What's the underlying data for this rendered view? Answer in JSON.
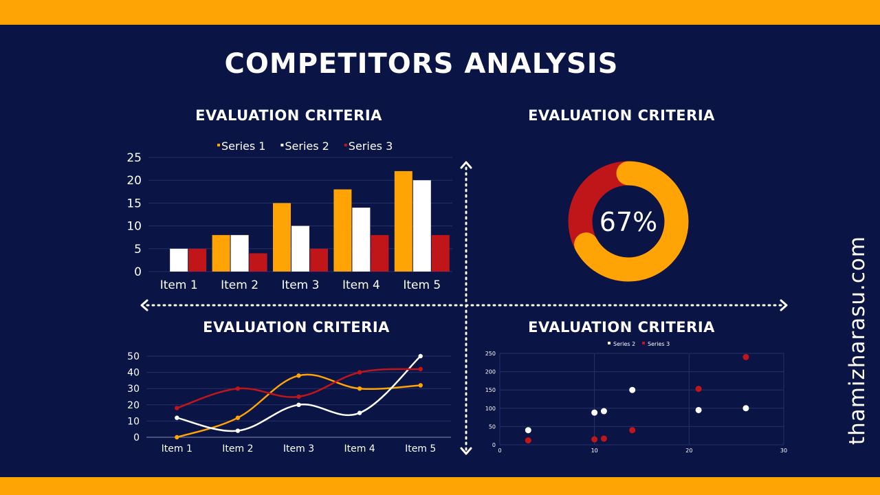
{
  "page": {
    "title": "COMPETITORS ANALYSIS",
    "side_text": "thamizharasu.com",
    "colors": {
      "background": "#0b1545",
      "band": "#ffa404"
    }
  },
  "chart_data": [
    {
      "type": "bar",
      "title": "EVALUATION CRITERIA",
      "categories": [
        "Item 1",
        "Item 2",
        "Item 3",
        "Item 4",
        "Item 5"
      ],
      "series": [
        {
          "name": "Series 1",
          "color": "#ffa404",
          "values": [
            0,
            8,
            15,
            18,
            22
          ]
        },
        {
          "name": "Series 2",
          "color": "#ffffff",
          "values": [
            5,
            8,
            10,
            14,
            20
          ]
        },
        {
          "name": "Series 3",
          "color": "#c0161a",
          "values": [
            5,
            4,
            5,
            8,
            8
          ]
        }
      ],
      "ylim": [
        0,
        25
      ],
      "yticks": [
        0,
        5,
        10,
        15,
        20,
        25
      ],
      "legend": "top",
      "grid": true
    },
    {
      "type": "pie",
      "title": "EVALUATION CRITERIA",
      "center_label": "67%",
      "slices": [
        {
          "value": 67,
          "color": "#ffa404"
        },
        {
          "value": 33,
          "color": "#c0161a"
        }
      ]
    },
    {
      "type": "line",
      "title": "EVALUATION CRITERIA",
      "categories": [
        "Item 1",
        "Item 2",
        "Item 3",
        "Item 4",
        "Item 5"
      ],
      "series": [
        {
          "color": "#ffa404",
          "values": [
            0,
            12,
            38,
            30,
            32
          ]
        },
        {
          "color": "#ffffff",
          "values": [
            12,
            4,
            20,
            15,
            50
          ]
        },
        {
          "color": "#c0161a",
          "values": [
            18,
            30,
            25,
            40,
            42
          ]
        }
      ],
      "ylim": [
        0,
        50
      ],
      "yticks": [
        0,
        10,
        20,
        30,
        40,
        50
      ],
      "grid": true
    },
    {
      "type": "scatter",
      "title": "EVALUATION CRITERIA",
      "series": [
        {
          "name": "Series 2",
          "color": "#ffffff",
          "x": [
            3,
            10,
            11,
            14,
            21,
            26
          ],
          "y": [
            40,
            88,
            92,
            150,
            95,
            100
          ]
        },
        {
          "name": "Series 3",
          "color": "#c0161a",
          "x": [
            3,
            10,
            11,
            14,
            21,
            26
          ],
          "y": [
            12,
            15,
            17,
            40,
            153,
            240
          ]
        }
      ],
      "xlim": [
        0,
        30
      ],
      "xticks": [
        0,
        10,
        20,
        30
      ],
      "ylim": [
        0,
        250
      ],
      "yticks": [
        0,
        50,
        100,
        150,
        200,
        250
      ],
      "legend": "top",
      "grid": true
    }
  ]
}
